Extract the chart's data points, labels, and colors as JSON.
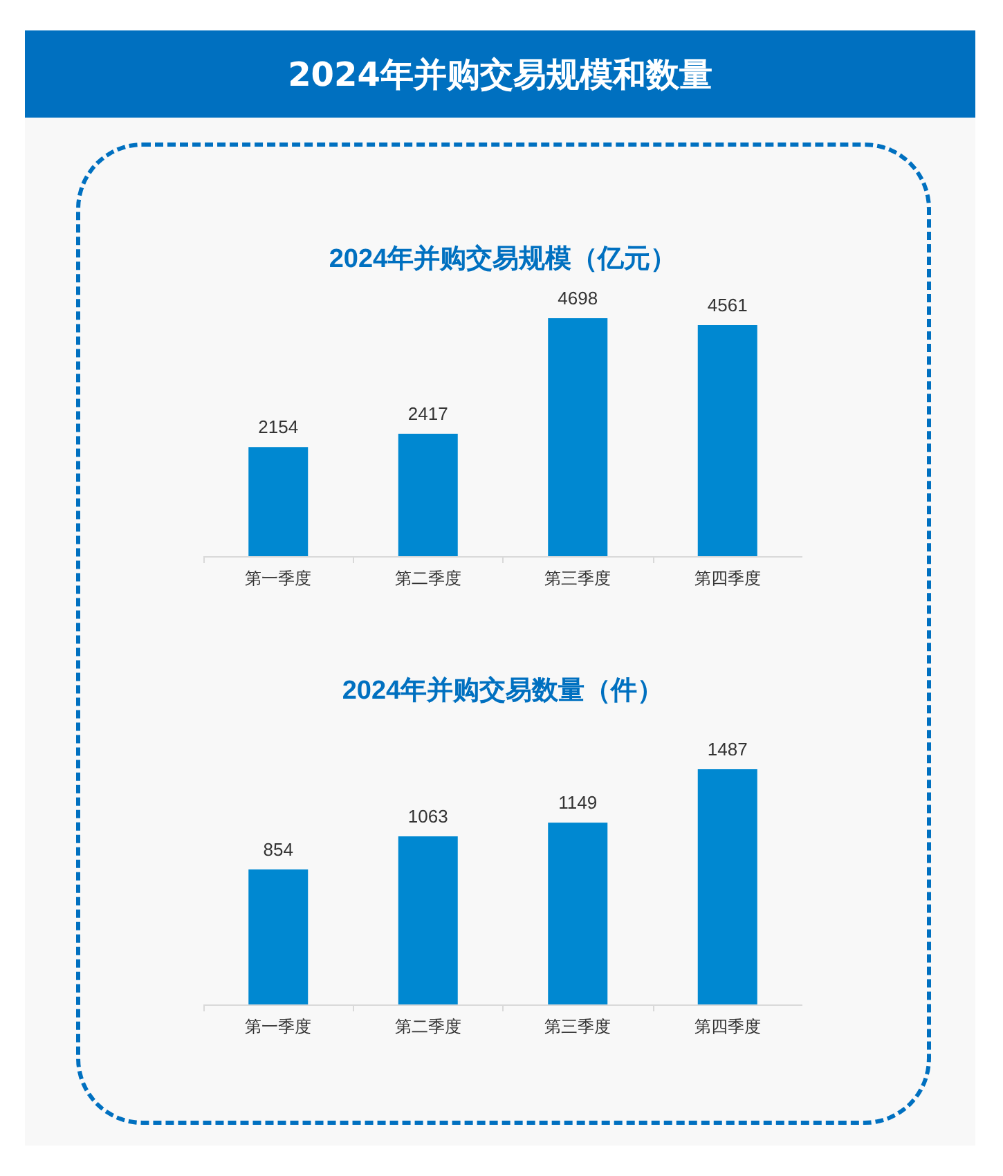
{
  "chart_data": [
    {
      "type": "other",
      "title": "2024年并购交易规模和数量"
    },
    {
      "type": "bar",
      "title": "2024年并购交易规模（亿元）",
      "categories": [
        "第一季度",
        "第二季度",
        "第三季度",
        "第四季度"
      ],
      "values": [
        2154,
        2417,
        4698,
        4561
      ],
      "color": "#0088d1",
      "data_labels": true
    },
    {
      "type": "bar",
      "title": "2024年并购交易数量（件）",
      "categories": [
        "第一季度",
        "第二季度",
        "第三季度",
        "第四季度"
      ],
      "values": [
        854,
        1063,
        1149,
        1487
      ],
      "color": "#0088d1",
      "data_labels": true
    }
  ]
}
